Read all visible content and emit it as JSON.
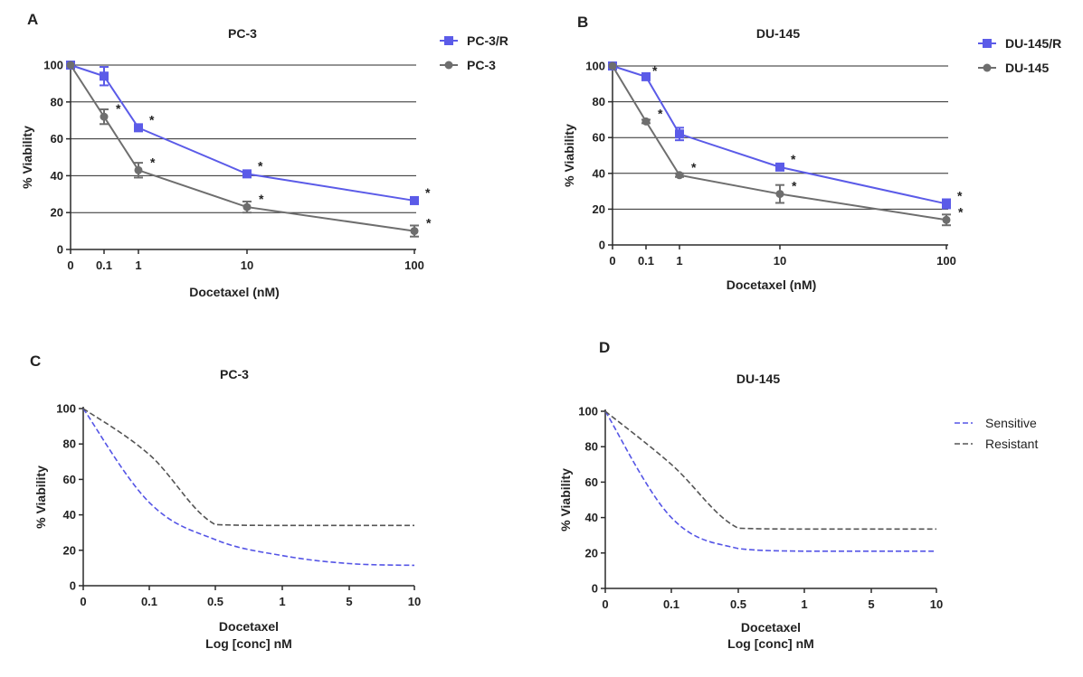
{
  "chart_data": [
    {
      "panel": "A",
      "type": "line",
      "title": "PC-3",
      "xlabel": "Docetaxel (nM)",
      "ylabel": "% Viability",
      "x_ticks": [
        "0",
        "0.1",
        "1",
        "10",
        "100"
      ],
      "y_ticks": [
        "0",
        "20",
        "40",
        "60",
        "80",
        "100"
      ],
      "ylim": [
        0,
        100
      ],
      "grid": "horizontal",
      "legend_position": "top-right",
      "significance_marker": "*",
      "series": [
        {
          "name": "PC-3/R",
          "color": "#5b5be8",
          "marker": "square",
          "x": [
            0,
            0.1,
            1,
            10,
            100
          ],
          "y": [
            100,
            94,
            66,
            41,
            26.5
          ],
          "err": [
            0,
            5,
            1.5,
            1.5,
            1.5
          ],
          "significant": [
            false,
            false,
            true,
            true,
            true
          ]
        },
        {
          "name": "PC-3",
          "color": "#6e6e6e",
          "marker": "circle",
          "x": [
            0,
            0.1,
            1,
            10,
            100
          ],
          "y": [
            100,
            72,
            43,
            23,
            10
          ],
          "err": [
            0,
            4,
            4,
            3,
            3
          ],
          "significant": [
            false,
            true,
            true,
            true,
            true
          ]
        }
      ]
    },
    {
      "panel": "B",
      "type": "line",
      "title": "DU-145",
      "xlabel": "Docetaxel (nM)",
      "ylabel": "% Viability",
      "x_ticks": [
        "0",
        "0.1",
        "1",
        "10",
        "100"
      ],
      "y_ticks": [
        "0",
        "20",
        "40",
        "60",
        "80",
        "100"
      ],
      "ylim": [
        0,
        100
      ],
      "grid": "horizontal",
      "legend_position": "top-right",
      "significance_marker": "*",
      "series": [
        {
          "name": "DU-145/R",
          "color": "#5b5be8",
          "marker": "square",
          "x": [
            0,
            0.1,
            1,
            10,
            100
          ],
          "y": [
            100,
            94,
            62,
            43.5,
            23
          ],
          "err": [
            0,
            1.5,
            3.5,
            1.5,
            2.5
          ],
          "significant": [
            false,
            true,
            false,
            true,
            true
          ]
        },
        {
          "name": "DU-145",
          "color": "#6e6e6e",
          "marker": "circle",
          "x": [
            0,
            0.1,
            1,
            10,
            100
          ],
          "y": [
            100,
            69,
            39,
            28.5,
            14
          ],
          "err": [
            0,
            1,
            1,
            5,
            3
          ],
          "significant": [
            false,
            true,
            true,
            true,
            true
          ]
        }
      ]
    },
    {
      "panel": "C",
      "type": "line",
      "title": "PC-3",
      "xlabel": "Docetaxel",
      "xlabel2": "Log [conc] nM",
      "ylabel": "% Viability",
      "x_ticks": [
        "0",
        "0.1",
        "0.5",
        "1",
        "5",
        "10"
      ],
      "y_ticks": [
        "0",
        "20",
        "40",
        "60",
        "80",
        "100"
      ],
      "ylim": [
        0,
        100
      ],
      "grid": "none",
      "series": [
        {
          "name": "Sensitive",
          "color": "#5555e6",
          "dash": "dashed",
          "x": [
            0,
            0.1,
            0.5,
            1,
            5,
            10
          ],
          "y": [
            100,
            47,
            26,
            17,
            12.5,
            11.5
          ]
        },
        {
          "name": "Resistant",
          "color": "#555555",
          "dash": "dashed",
          "x": [
            0,
            0.1,
            0.5,
            1,
            5,
            10
          ],
          "y": [
            100,
            74,
            34.5,
            34,
            34,
            34
          ]
        }
      ]
    },
    {
      "panel": "D",
      "type": "line",
      "title": "DU-145",
      "xlabel": "Docetaxel",
      "xlabel2": "Log [conc] nM",
      "ylabel": "% Viability",
      "x_ticks": [
        "0",
        "0.1",
        "0.5",
        "1",
        "5",
        "10"
      ],
      "y_ticks": [
        "0",
        "20",
        "40",
        "60",
        "80",
        "100"
      ],
      "ylim": [
        0,
        100
      ],
      "grid": "none",
      "legend_position": "top-right",
      "series": [
        {
          "name": "Sensitive",
          "color": "#5555e6",
          "dash": "dashed",
          "x": [
            0,
            0.1,
            0.5,
            1,
            5,
            10
          ],
          "y": [
            100,
            40,
            22.5,
            21,
            21,
            21
          ]
        },
        {
          "name": "Resistant",
          "color": "#555555",
          "dash": "dashed",
          "x": [
            0,
            0.1,
            0.5,
            1,
            5,
            10
          ],
          "y": [
            100,
            70,
            34,
            33.5,
            33.5,
            33.5
          ]
        }
      ]
    }
  ]
}
